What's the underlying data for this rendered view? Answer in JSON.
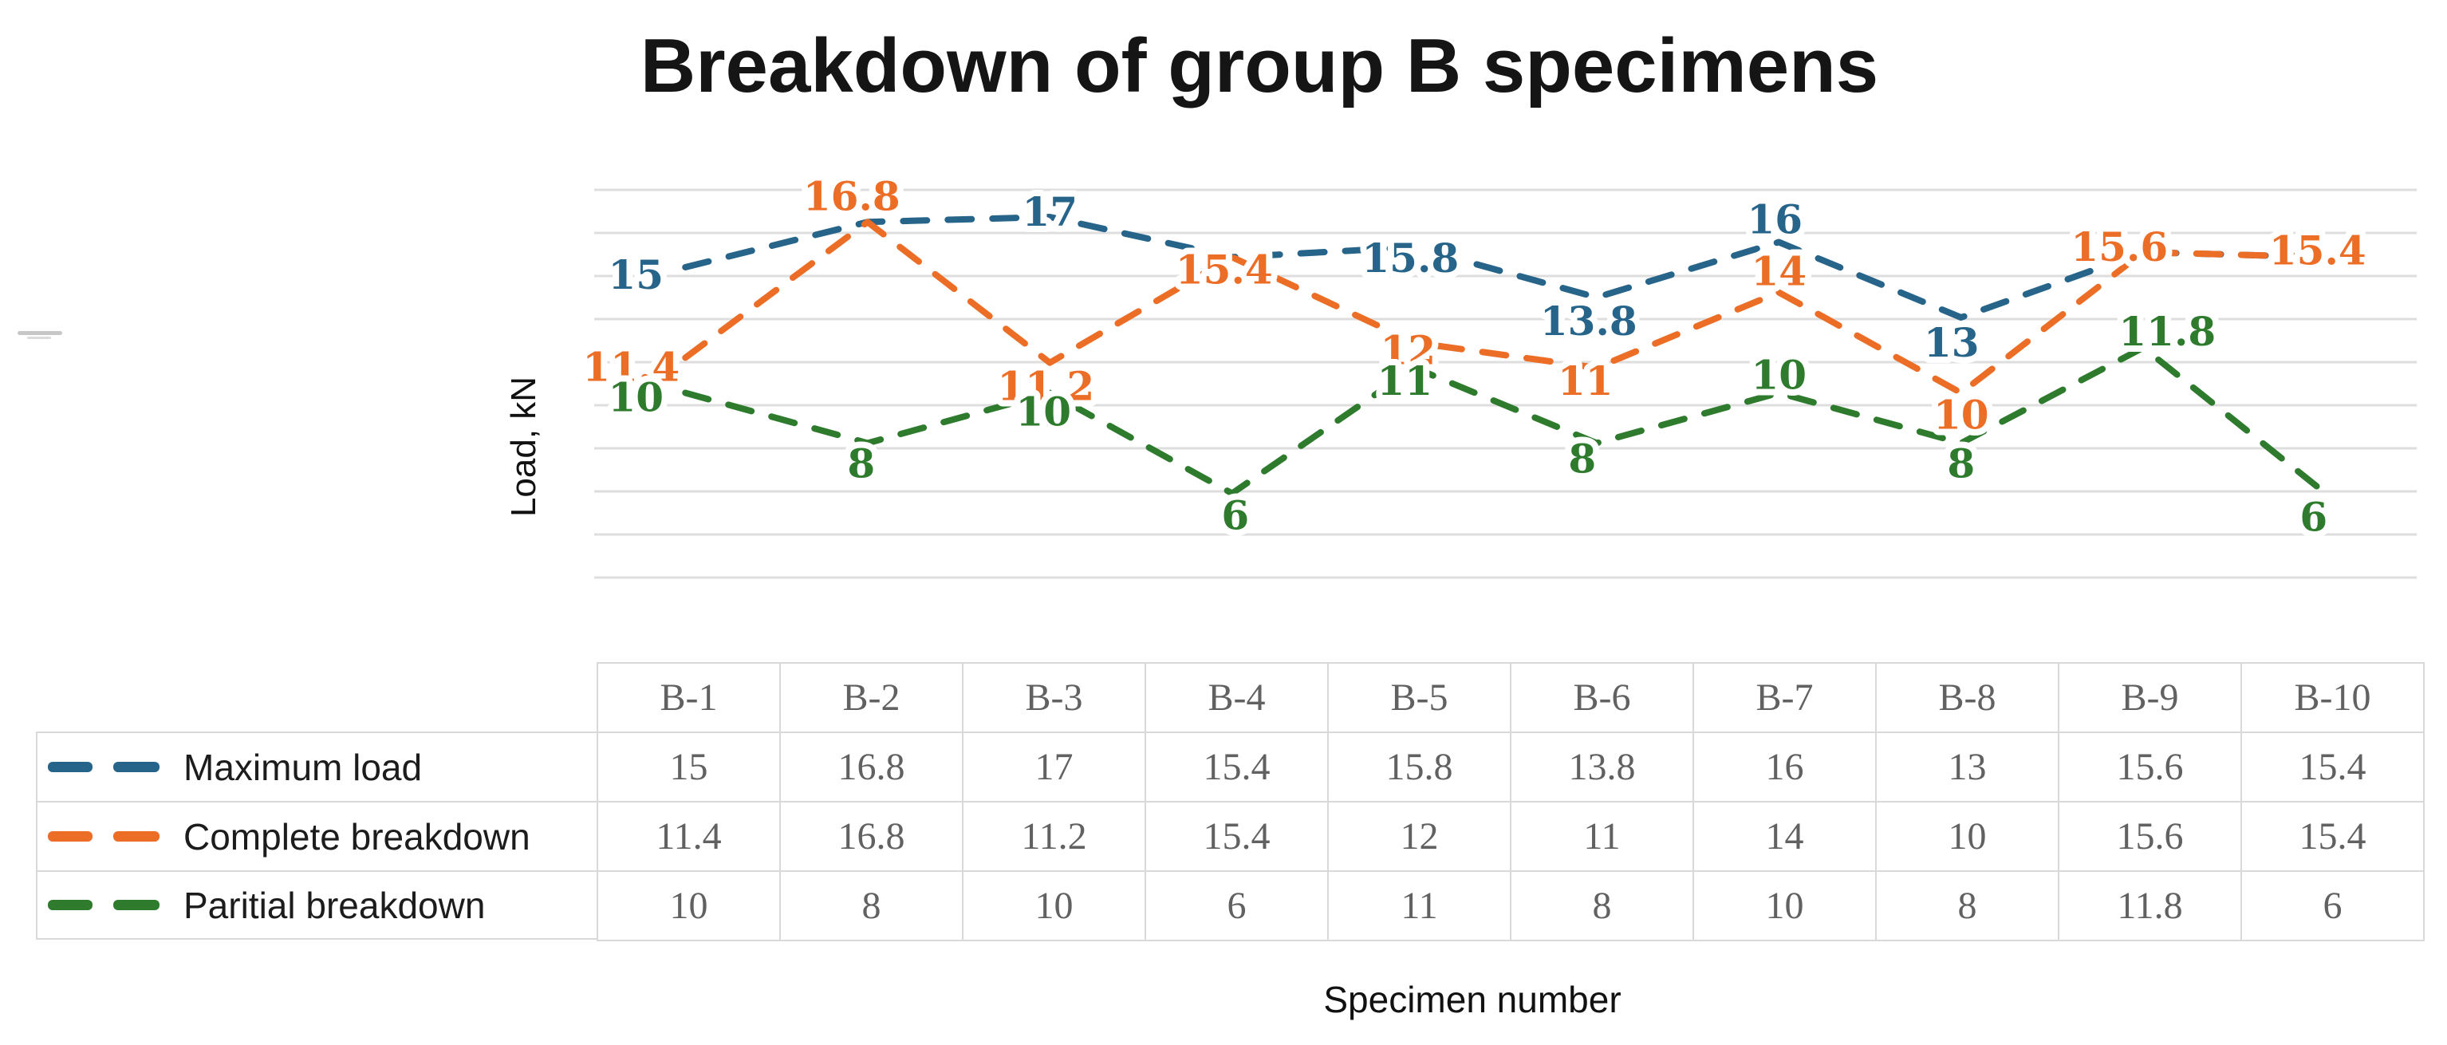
{
  "title": "Breakdown of group B specimens",
  "axes": {
    "y_label": "Load, kN",
    "x_label": "Specimen number"
  },
  "colors": {
    "series_blue": "#27648a",
    "series_orange": "#ec6e26",
    "series_green": "#2e7b2e",
    "grid_line": "#dedede",
    "table_border": "#d9d9d9",
    "table_text": "#616161",
    "title_text": "#151515"
  },
  "chart_data": {
    "type": "line",
    "title": "Breakdown of group B specimens",
    "xlabel": "Specimen number",
    "ylabel": "Load, kN",
    "categories": [
      "B-1",
      "B-2",
      "B-3",
      "B-4",
      "B-5",
      "B-6",
      "B-7",
      "B-8",
      "B-9",
      "B-10"
    ],
    "series": [
      {
        "name": "Maximum load",
        "color_key": "series_blue",
        "values": [
          15,
          16.8,
          17,
          15.4,
          15.8,
          13.8,
          16,
          13,
          15.6,
          15.4
        ],
        "label_visible": [
          true,
          false,
          true,
          false,
          true,
          true,
          true,
          true,
          false,
          false
        ]
      },
      {
        "name": "Complete breakdown",
        "color_key": "series_orange",
        "values": [
          11.4,
          16.8,
          11.2,
          15.4,
          12,
          11,
          14,
          10,
          15.6,
          15.4
        ],
        "label_visible": [
          true,
          true,
          true,
          true,
          true,
          true,
          true,
          true,
          true,
          true
        ]
      },
      {
        "name": "Paritial breakdown",
        "color_key": "series_green",
        "values": [
          10,
          8,
          10,
          6,
          11,
          8,
          10,
          8,
          11.8,
          6
        ],
        "label_visible": [
          true,
          true,
          true,
          true,
          true,
          true,
          true,
          true,
          true,
          true
        ]
      }
    ],
    "ylim": [
      0,
      18
    ],
    "grid": true,
    "line_style": "dashed",
    "data_labels": true,
    "legend_position": "left-of-table",
    "table_shown": true
  }
}
